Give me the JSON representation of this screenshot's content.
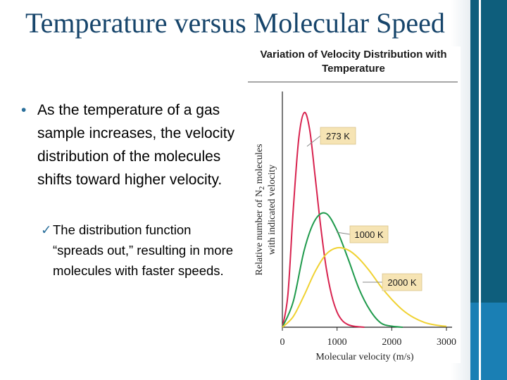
{
  "slide": {
    "title": "Temperature versus Molecular Speed",
    "bullet": "As the temperature of a gas sample increases, the velocity distribution of the molecules shifts toward higher velocity.",
    "subbullet": "The distribution function “spreads out,” resulting in more molecules with faster speeds."
  },
  "colors": {
    "title": "#17456b",
    "band_dark": "#0e5e7c",
    "band_light": "#1a7fb4",
    "bullet_marker": "#2a6f9b"
  },
  "chart_data": {
    "type": "line",
    "title": "Variation of Velocity Distribution with Temperature",
    "xlabel": "Molecular velocity (m/s)",
    "ylabel_line1": "Relative number of N",
    "ylabel_sub": "2",
    "ylabel_line2": " molecules",
    "ylabel_line3": "with indicated velocity",
    "xlim": [
      0,
      3000
    ],
    "x_ticks": [
      0,
      1000,
      2000,
      3000
    ],
    "ylim": [
      0,
      1
    ],
    "y_ticks": false,
    "grid": false,
    "series": [
      {
        "name": "273 K",
        "color": "#d8234f",
        "x": [
          0,
          100,
          200,
          300,
          400,
          500,
          600,
          700,
          800,
          900,
          1000,
          1100,
          1200,
          1300,
          1400,
          1500
        ],
        "y": [
          0,
          0.15,
          0.55,
          0.88,
          1.0,
          0.92,
          0.7,
          0.47,
          0.28,
          0.15,
          0.07,
          0.03,
          0.012,
          0.005,
          0.002,
          0
        ]
      },
      {
        "name": "1000 K",
        "color": "#1f9a4c",
        "x": [
          0,
          200,
          400,
          600,
          800,
          1000,
          1200,
          1400,
          1600,
          1800,
          2000,
          2200
        ],
        "y": [
          0,
          0.12,
          0.36,
          0.5,
          0.53,
          0.45,
          0.32,
          0.18,
          0.08,
          0.02,
          0.005,
          0
        ]
      },
      {
        "name": "2000 K",
        "color": "#f0d232",
        "x": [
          0,
          200,
          400,
          600,
          800,
          1000,
          1200,
          1400,
          1600,
          1800,
          2000,
          2200,
          2400,
          2600,
          2800,
          3000
        ],
        "y": [
          0,
          0.05,
          0.15,
          0.26,
          0.34,
          0.37,
          0.36,
          0.32,
          0.26,
          0.19,
          0.13,
          0.08,
          0.045,
          0.022,
          0.01,
          0.004
        ]
      }
    ],
    "annotations": [
      "273 K",
      "1000 K",
      "2000 K"
    ]
  }
}
